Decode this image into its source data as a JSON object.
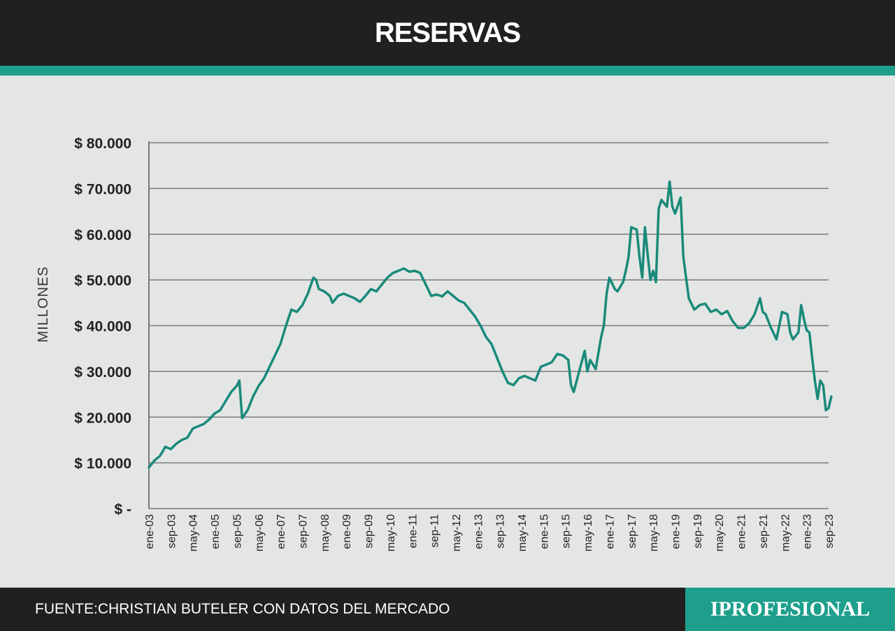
{
  "header": {
    "title": "RESERVAS"
  },
  "footer": {
    "source": "FUENTE:CHRISTIAN BUTELER CON DATOS DEL MERCADO",
    "brand": "IPROFESIONAL"
  },
  "colors": {
    "header_bg": "#221f20",
    "accent": "#1e9f8c",
    "line": "#1a8a7a",
    "background": "#e4e6e6",
    "grid": "#7a7a7a"
  },
  "chart_data": {
    "type": "line",
    "title": "RESERVAS",
    "ylabel": "MILLONES",
    "xlabel": "",
    "ylim": [
      0,
      80000
    ],
    "yticks": [
      {
        "value": 80000,
        "label": "$ 80.000"
      },
      {
        "value": 70000,
        "label": "$ 70.000"
      },
      {
        "value": 60000,
        "label": "$ 60.000"
      },
      {
        "value": 50000,
        "label": "$ 50.000"
      },
      {
        "value": 40000,
        "label": "$ 40.000"
      },
      {
        "value": 30000,
        "label": "$ 30.000"
      },
      {
        "value": 20000,
        "label": "$ 20.000"
      },
      {
        "value": 10000,
        "label": "$ 10.000"
      },
      {
        "value": 0,
        "label": "$ -"
      }
    ],
    "xticks": [
      "ene-03",
      "sep-03",
      "may-04",
      "ene-05",
      "sep-05",
      "may-06",
      "ene-07",
      "sep-07",
      "may-08",
      "ene-09",
      "sep-09",
      "may-10",
      "ene-11",
      "sep-11",
      "may-12",
      "ene-13",
      "sep-13",
      "may-14",
      "ene-15",
      "sep-15",
      "may-16",
      "ene-17",
      "sep-17",
      "may-18",
      "ene-19",
      "sep-19",
      "may-20",
      "ene-21",
      "sep-21",
      "may-22",
      "ene-23",
      "sep-23"
    ],
    "grid": true,
    "legend": "none",
    "series": [
      {
        "values": [
          [
            "ene-03",
            9000
          ],
          [
            "mar-03",
            10500
          ],
          [
            "may-03",
            11500
          ],
          [
            "jul-03",
            13500
          ],
          [
            "sep-03",
            13000
          ],
          [
            "nov-03",
            14200
          ],
          [
            "ene-04",
            15000
          ],
          [
            "mar-04",
            15500
          ],
          [
            "may-04",
            17500
          ],
          [
            "jul-04",
            18000
          ],
          [
            "sep-04",
            18500
          ],
          [
            "nov-04",
            19500
          ],
          [
            "ene-05",
            20800
          ],
          [
            "mar-05",
            21500
          ],
          [
            "may-05",
            23500
          ],
          [
            "jul-05",
            25500
          ],
          [
            "sep-05",
            26800
          ],
          [
            "oct-05",
            28000
          ],
          [
            "nov-05",
            19800
          ],
          [
            "ene-06",
            21500
          ],
          [
            "mar-06",
            24500
          ],
          [
            "may-06",
            26800
          ],
          [
            "jul-06",
            28500
          ],
          [
            "sep-06",
            31000
          ],
          [
            "nov-06",
            33500
          ],
          [
            "ene-07",
            36000
          ],
          [
            "mar-07",
            40000
          ],
          [
            "may-07",
            43500
          ],
          [
            "jul-07",
            43000
          ],
          [
            "sep-07",
            44500
          ],
          [
            "nov-07",
            47000
          ],
          [
            "ene-08",
            50500
          ],
          [
            "feb-08",
            50000
          ],
          [
            "mar-08",
            48000
          ],
          [
            "may-08",
            47500
          ],
          [
            "jul-08",
            46500
          ],
          [
            "ago-08",
            45000
          ],
          [
            "oct-08",
            46500
          ],
          [
            "dic-08",
            47000
          ],
          [
            "feb-09",
            46500
          ],
          [
            "abr-09",
            46000
          ],
          [
            "jun-09",
            45200
          ],
          [
            "ago-09",
            46500
          ],
          [
            "oct-09",
            48000
          ],
          [
            "dic-09",
            47500
          ],
          [
            "feb-10",
            49000
          ],
          [
            "abr-10",
            50500
          ],
          [
            "jun-10",
            51500
          ],
          [
            "ago-10",
            52000
          ],
          [
            "oct-10",
            52500
          ],
          [
            "dic-10",
            51800
          ],
          [
            "feb-11",
            52000
          ],
          [
            "abr-11",
            51500
          ],
          [
            "jun-11",
            49000
          ],
          [
            "ago-11",
            46500
          ],
          [
            "oct-11",
            46800
          ],
          [
            "dic-11",
            46400
          ],
          [
            "feb-12",
            47500
          ],
          [
            "abr-12",
            46500
          ],
          [
            "jun-12",
            45500
          ],
          [
            "ago-12",
            45000
          ],
          [
            "oct-12",
            43500
          ],
          [
            "dic-12",
            42000
          ],
          [
            "feb-13",
            40000
          ],
          [
            "abr-13",
            37500
          ],
          [
            "jun-13",
            36000
          ],
          [
            "ago-13",
            33000
          ],
          [
            "oct-13",
            30000
          ],
          [
            "dic-13",
            27500
          ],
          [
            "feb-14",
            27000
          ],
          [
            "abr-14",
            28500
          ],
          [
            "jun-14",
            29000
          ],
          [
            "ago-14",
            28500
          ],
          [
            "oct-14",
            28000
          ],
          [
            "dic-14",
            31000
          ],
          [
            "feb-15",
            31500
          ],
          [
            "abr-15",
            32000
          ],
          [
            "jun-15",
            33800
          ],
          [
            "ago-15",
            33500
          ],
          [
            "oct-15",
            32500
          ],
          [
            "nov-15",
            27000
          ],
          [
            "dic-15",
            25500
          ],
          [
            "feb-16",
            30000
          ],
          [
            "abr-16",
            34500
          ],
          [
            "may-16",
            30000
          ],
          [
            "jun-16",
            32500
          ],
          [
            "ago-16",
            30500
          ],
          [
            "oct-16",
            37500
          ],
          [
            "nov-16",
            40000
          ],
          [
            "dic-16",
            47000
          ],
          [
            "ene-17",
            50500
          ],
          [
            "mar-17",
            48000
          ],
          [
            "abr-17",
            47500
          ],
          [
            "jun-17",
            49500
          ],
          [
            "jul-17",
            52000
          ],
          [
            "ago-17",
            55000
          ],
          [
            "sep-17",
            61500
          ],
          [
            "nov-17",
            61000
          ],
          [
            "dic-17",
            55000
          ],
          [
            "ene-18",
            50500
          ],
          [
            "feb-18",
            61500
          ],
          [
            "mar-18",
            55500
          ],
          [
            "abr-18",
            50000
          ],
          [
            "may-18",
            52000
          ],
          [
            "jun-18",
            49500
          ],
          [
            "jul-18",
            65500
          ],
          [
            "ago-18",
            67500
          ],
          [
            "oct-18",
            66000
          ],
          [
            "nov-18",
            71500
          ],
          [
            "dic-18",
            66000
          ],
          [
            "ene-19",
            64500
          ],
          [
            "mar-19",
            68000
          ],
          [
            "abr-19",
            55000
          ],
          [
            "jun-19",
            46000
          ],
          [
            "ago-19",
            43500
          ],
          [
            "oct-19",
            44500
          ],
          [
            "dic-19",
            44800
          ],
          [
            "feb-20",
            43000
          ],
          [
            "abr-20",
            43500
          ],
          [
            "jun-20",
            42500
          ],
          [
            "ago-20",
            43200
          ],
          [
            "oct-20",
            41000
          ],
          [
            "dic-20",
            39500
          ],
          [
            "feb-21",
            39500
          ],
          [
            "abr-21",
            40500
          ],
          [
            "jun-21",
            42500
          ],
          [
            "ago-21",
            46000
          ],
          [
            "sep-21",
            43000
          ],
          [
            "oct-21",
            42500
          ],
          [
            "dic-21",
            39500
          ],
          [
            "feb-22",
            37000
          ],
          [
            "abr-22",
            43000
          ],
          [
            "jun-22",
            42500
          ],
          [
            "jul-22",
            38500
          ],
          [
            "ago-22",
            37000
          ],
          [
            "oct-22",
            38500
          ],
          [
            "nov-22",
            44500
          ],
          [
            "dic-22",
            41500
          ],
          [
            "ene-23",
            39000
          ],
          [
            "feb-23",
            38500
          ],
          [
            "mar-23",
            33000
          ],
          [
            "abr-23",
            28000
          ],
          [
            "may-23",
            24000
          ],
          [
            "jun-23",
            28000
          ],
          [
            "jul-23",
            27000
          ],
          [
            "ago-23",
            21500
          ],
          [
            "sep-23",
            22000
          ],
          [
            "oct-23",
            24500
          ]
        ]
      }
    ]
  }
}
